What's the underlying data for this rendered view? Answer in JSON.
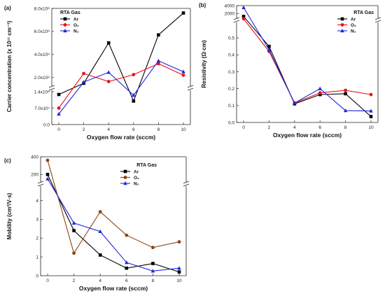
{
  "chart_data": [
    {
      "type": "line",
      "panel_label": "(a)",
      "xlabel": "Oxygen flow rate (sccm)",
      "ylabel": "Carrier concentration (x 10¹¹ cm⁻³)",
      "x": [
        0,
        2,
        4,
        6,
        8,
        10
      ],
      "x_ticks": [
        "0",
        "2",
        "4",
        "6",
        "8",
        "10"
      ],
      "y_tick_labels_low": [
        "0.0",
        "7.0x10⁷",
        "1.4x10⁸"
      ],
      "y_tick_labels_high": [
        "2.0x10⁸",
        "4.0x10⁸",
        "6.0x10⁸",
        "8.0x10⁸"
      ],
      "legend_title": "RTA Gas",
      "legend_position": "top-left",
      "series": [
        {
          "name": "Ar",
          "color": "#000000",
          "marker": "square",
          "values": [
            128000000,
            150000000,
            500000000,
            100000000,
            570000000,
            760000000
          ]
        },
        {
          "name": "O₂",
          "color": "#e8141c",
          "marker": "circle",
          "values": [
            70000000,
            235000000,
            165000000,
            225000000,
            320000000,
            220000000
          ]
        },
        {
          "name": "N₂",
          "color": "#1f28d8",
          "marker": "triangle",
          "values": [
            45000000,
            160000000,
            245000000,
            125000000,
            345000000,
            250000000
          ]
        }
      ]
    },
    {
      "type": "line",
      "panel_label": "(b)",
      "xlabel": "Oxygen flow rate (sccm)",
      "ylabel": "Resistivity (Ω·cm)",
      "x": [
        0,
        2,
        4,
        6,
        8,
        10
      ],
      "x_ticks": [
        "0",
        "2",
        "4",
        "6",
        "8",
        "10"
      ],
      "y_tick_labels_low": [
        "0.0",
        "0.1",
        "0.2",
        "0.3",
        "0.4",
        "0.5"
      ],
      "y_tick_labels_high": [
        "2000",
        "4000"
      ],
      "legend_title": "RTA Gas",
      "legend_position": "top-right",
      "series": [
        {
          "name": "Ar",
          "color": "#000000",
          "marker": "square",
          "values": [
            1300,
            0.45,
            0.11,
            0.165,
            0.17,
            0.035
          ]
        },
        {
          "name": "O₂",
          "color": "#e8141c",
          "marker": "circle",
          "values": [
            700,
            0.42,
            0.115,
            0.175,
            0.19,
            0.165
          ]
        },
        {
          "name": "N₂",
          "color": "#1f28d8",
          "marker": "triangle",
          "values": [
            3500,
            0.43,
            0.115,
            0.2,
            0.07,
            0.068
          ]
        }
      ]
    },
    {
      "type": "line",
      "panel_label": "(c)",
      "xlabel": "Oxygen flow rate (sccm)",
      "ylabel": "Mobility (cm²/V·s)",
      "x": [
        0,
        2,
        4,
        6,
        8,
        10
      ],
      "x_ticks": [
        "0",
        "2",
        "4",
        "6",
        "8",
        "10"
      ],
      "y_tick_labels_low": [
        "0",
        "1",
        "2",
        "3",
        "4"
      ],
      "y_tick_labels_high": [
        "200",
        "400"
      ],
      "legend_title": "RTA Gas",
      "legend_position": "top-right",
      "series": [
        {
          "name": "Ar",
          "color": "#000000",
          "marker": "square",
          "values": [
            200,
            2.4,
            1.1,
            0.4,
            0.65,
            0.2
          ]
        },
        {
          "name": "O₂",
          "color": "#8b4513",
          "marker": "circle",
          "values": [
            360,
            1.2,
            3.4,
            2.15,
            1.5,
            1.8
          ]
        },
        {
          "name": "N₂",
          "color": "#1f28d8",
          "marker": "triangle",
          "values": [
            150,
            2.8,
            2.35,
            0.7,
            0.25,
            0.4
          ]
        }
      ]
    }
  ]
}
